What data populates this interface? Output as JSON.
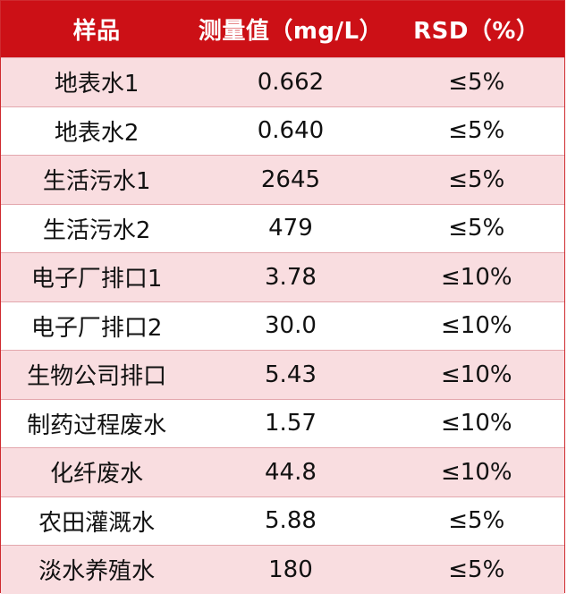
{
  "table": {
    "headers": [
      "样品",
      "测量值（mg/L）",
      "RSD（%）"
    ],
    "rows": [
      [
        "地表水1",
        "0.662",
        "≤5%"
      ],
      [
        "地表水2",
        "0.640",
        "≤5%"
      ],
      [
        "生活污水1",
        "2645",
        "≤5%"
      ],
      [
        "生活污水2",
        "479",
        "≤5%"
      ],
      [
        "电子厂排口1",
        "3.78",
        "≤10%"
      ],
      [
        "电子厂排口2",
        "30.0",
        "≤10%"
      ],
      [
        "生物公司排口",
        "5.43",
        "≤10%"
      ],
      [
        "制药过程废水",
        "1.57",
        "≤10%"
      ],
      [
        "化纤废水",
        "44.8",
        "≤10%"
      ],
      [
        "农田灌溉水",
        "5.88",
        "≤5%"
      ],
      [
        "淡水养殖水",
        "180",
        "≤5%"
      ]
    ]
  },
  "colors": {
    "header_bg": "#cc1016",
    "header_text": "#ffffff",
    "row_pink": "#f9dde0",
    "row_white": "#ffffff",
    "border": "#cf2a2f"
  }
}
